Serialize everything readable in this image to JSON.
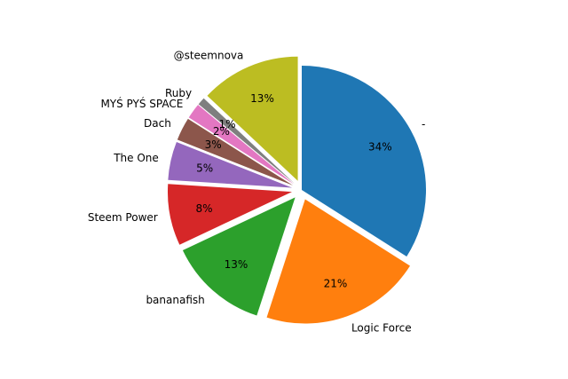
{
  "chart_data": {
    "type": "pie",
    "slices": [
      {
        "label": "-",
        "percent_label": "34%",
        "value": 34,
        "color": "#1f77b4",
        "exploded": false
      },
      {
        "label": "Logic Force",
        "percent_label": "21%",
        "value": 21,
        "color": "#ff7f0e",
        "exploded": true
      },
      {
        "label": "bananafish",
        "percent_label": "13%",
        "value": 13,
        "color": "#2ca02c",
        "exploded": true
      },
      {
        "label": "Steem Power",
        "percent_label": "8%",
        "value": 8,
        "color": "#d62728",
        "exploded": true
      },
      {
        "label": "The One",
        "percent_label": "5%",
        "value": 5,
        "color": "#9467bd",
        "exploded": true
      },
      {
        "label": "Dach",
        "percent_label": "3%",
        "value": 3,
        "color": "#8c564b",
        "exploded": true
      },
      {
        "label": "MYŚ PYŚ SPACE",
        "percent_label": "2%",
        "value": 2,
        "color": "#e377c2",
        "exploded": true
      },
      {
        "label": "Ruby",
        "percent_label": "1%",
        "value": 1,
        "color": "#7f7f7f",
        "exploded": true
      },
      {
        "label": "@steemnova",
        "percent_label": "13%",
        "value": 13,
        "color": "#bcbd22",
        "exploded": true
      }
    ],
    "start_angle_deg": 90,
    "direction": "clockwise"
  }
}
